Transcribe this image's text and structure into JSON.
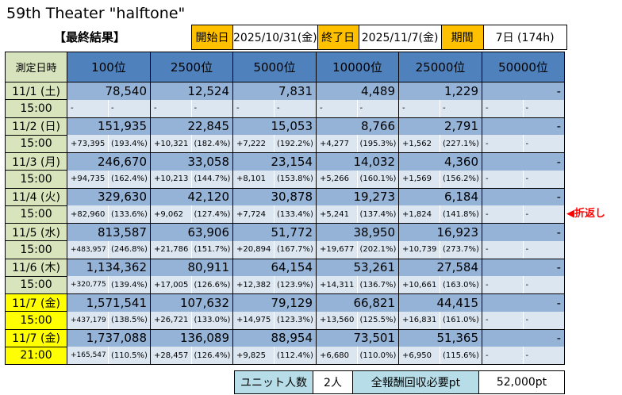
{
  "title": "59th Theater \"halftone\"",
  "subtitle": "【最終結果】",
  "info": {
    "start_label": "開始日",
    "start_value": "2025/10/31(金)",
    "end_label": "終了日",
    "end_value": "2025/11/7(金)",
    "period_label": "期間",
    "period_value": "7日 (174h)"
  },
  "table": {
    "date_header": "測定日時",
    "columns": [
      "100位",
      "2500位",
      "5000位",
      "10000位",
      "25000位",
      "50000位"
    ],
    "rows": [
      {
        "date": "11/1 (土)",
        "time": "15:00",
        "highlight": false,
        "values": [
          "78,540",
          "12,524",
          "7,831",
          "4,489",
          "1,229",
          "-"
        ],
        "incs": [
          "-",
          "-",
          "-",
          "-",
          "-",
          "-"
        ],
        "pcts": [
          "-",
          "-",
          "-",
          "-",
          "-",
          "-"
        ]
      },
      {
        "date": "11/2 (日)",
        "time": "15:00",
        "highlight": false,
        "values": [
          "151,935",
          "22,845",
          "15,053",
          "8,766",
          "2,791",
          "-"
        ],
        "incs": [
          "+73,395",
          "+10,321",
          "+7,222",
          "+4,277",
          "+1,562",
          "-"
        ],
        "pcts": [
          "(193.4%)",
          "(182.4%)",
          "(192.2%)",
          "(195.3%)",
          "(227.1%)",
          "-"
        ]
      },
      {
        "date": "11/3 (月)",
        "time": "15:00",
        "highlight": false,
        "values": [
          "246,670",
          "33,058",
          "23,154",
          "14,032",
          "4,360",
          "-"
        ],
        "incs": [
          "+94,735",
          "+10,213",
          "+8,101",
          "+5,266",
          "+1,569",
          "-"
        ],
        "pcts": [
          "(162.4%)",
          "(144.7%)",
          "(153.8%)",
          "(160.1%)",
          "(156.2%)",
          "-"
        ]
      },
      {
        "date": "11/4 (火)",
        "time": "15:00",
        "highlight": false,
        "values": [
          "329,630",
          "42,120",
          "30,878",
          "19,273",
          "6,184",
          "-"
        ],
        "incs": [
          "+82,960",
          "+9,062",
          "+7,724",
          "+5,241",
          "+1,824",
          "-"
        ],
        "pcts": [
          "(133.6%)",
          "(127.4%)",
          "(133.4%)",
          "(137.4%)",
          "(141.8%)",
          "-"
        ]
      },
      {
        "date": "11/5 (水)",
        "time": "15:00",
        "highlight": false,
        "values": [
          "813,587",
          "63,906",
          "51,772",
          "38,950",
          "16,923",
          "-"
        ],
        "incs": [
          "+483,957",
          "+21,786",
          "+20,894",
          "+19,677",
          "+10,739",
          "-"
        ],
        "pcts": [
          "(246.8%)",
          "(151.7%)",
          "(167.7%)",
          "(202.1%)",
          "(273.7%)",
          "-"
        ]
      },
      {
        "date": "11/6 (木)",
        "time": "15:00",
        "highlight": false,
        "values": [
          "1,134,362",
          "80,911",
          "64,154",
          "53,261",
          "27,584",
          "-"
        ],
        "incs": [
          "+320,775",
          "+17,005",
          "+12,382",
          "+14,311",
          "+10,661",
          "-"
        ],
        "pcts": [
          "(139.4%)",
          "(126.6%)",
          "(123.9%)",
          "(136.7%)",
          "(163.0%)",
          "-"
        ]
      },
      {
        "date": "11/7 (金)",
        "time": "15:00",
        "highlight": true,
        "values": [
          "1,571,541",
          "107,632",
          "79,129",
          "66,821",
          "44,415",
          "-"
        ],
        "incs": [
          "+437,179",
          "+26,721",
          "+14,975",
          "+13,560",
          "+16,831",
          "-"
        ],
        "pcts": [
          "(138.5%)",
          "(133.0%)",
          "(123.3%)",
          "(125.5%)",
          "(161.0%)",
          "-"
        ]
      },
      {
        "date": "11/7 (金)",
        "time": "21:00",
        "highlight": true,
        "values": [
          "1,737,088",
          "136,089",
          "88,954",
          "73,501",
          "51,365",
          "-"
        ],
        "incs": [
          "+165,547",
          "+28,457",
          "+9,825",
          "+6,680",
          "+6,950",
          "-"
        ],
        "pcts": [
          "(110.5%)",
          "(126.4%)",
          "(112.4%)",
          "(110.0%)",
          "(115.6%)",
          "-"
        ]
      }
    ]
  },
  "turn_note": "◀折返し",
  "bottom": {
    "units_label": "ユニット人数",
    "units_value": "2人",
    "points_label": "全報酬回収必要pt",
    "points_value": "52,000pt"
  },
  "colors": {
    "label_orange": "#ffc000",
    "header_blue": "#4f81bd",
    "value_blue": "#95b3d7",
    "sub_blue": "#dce6f1",
    "date_green": "#d8e4bc",
    "highlight_yellow": "#ffff00",
    "turn_red": "#ff0000",
    "bottom_label": "#b7dee8"
  }
}
